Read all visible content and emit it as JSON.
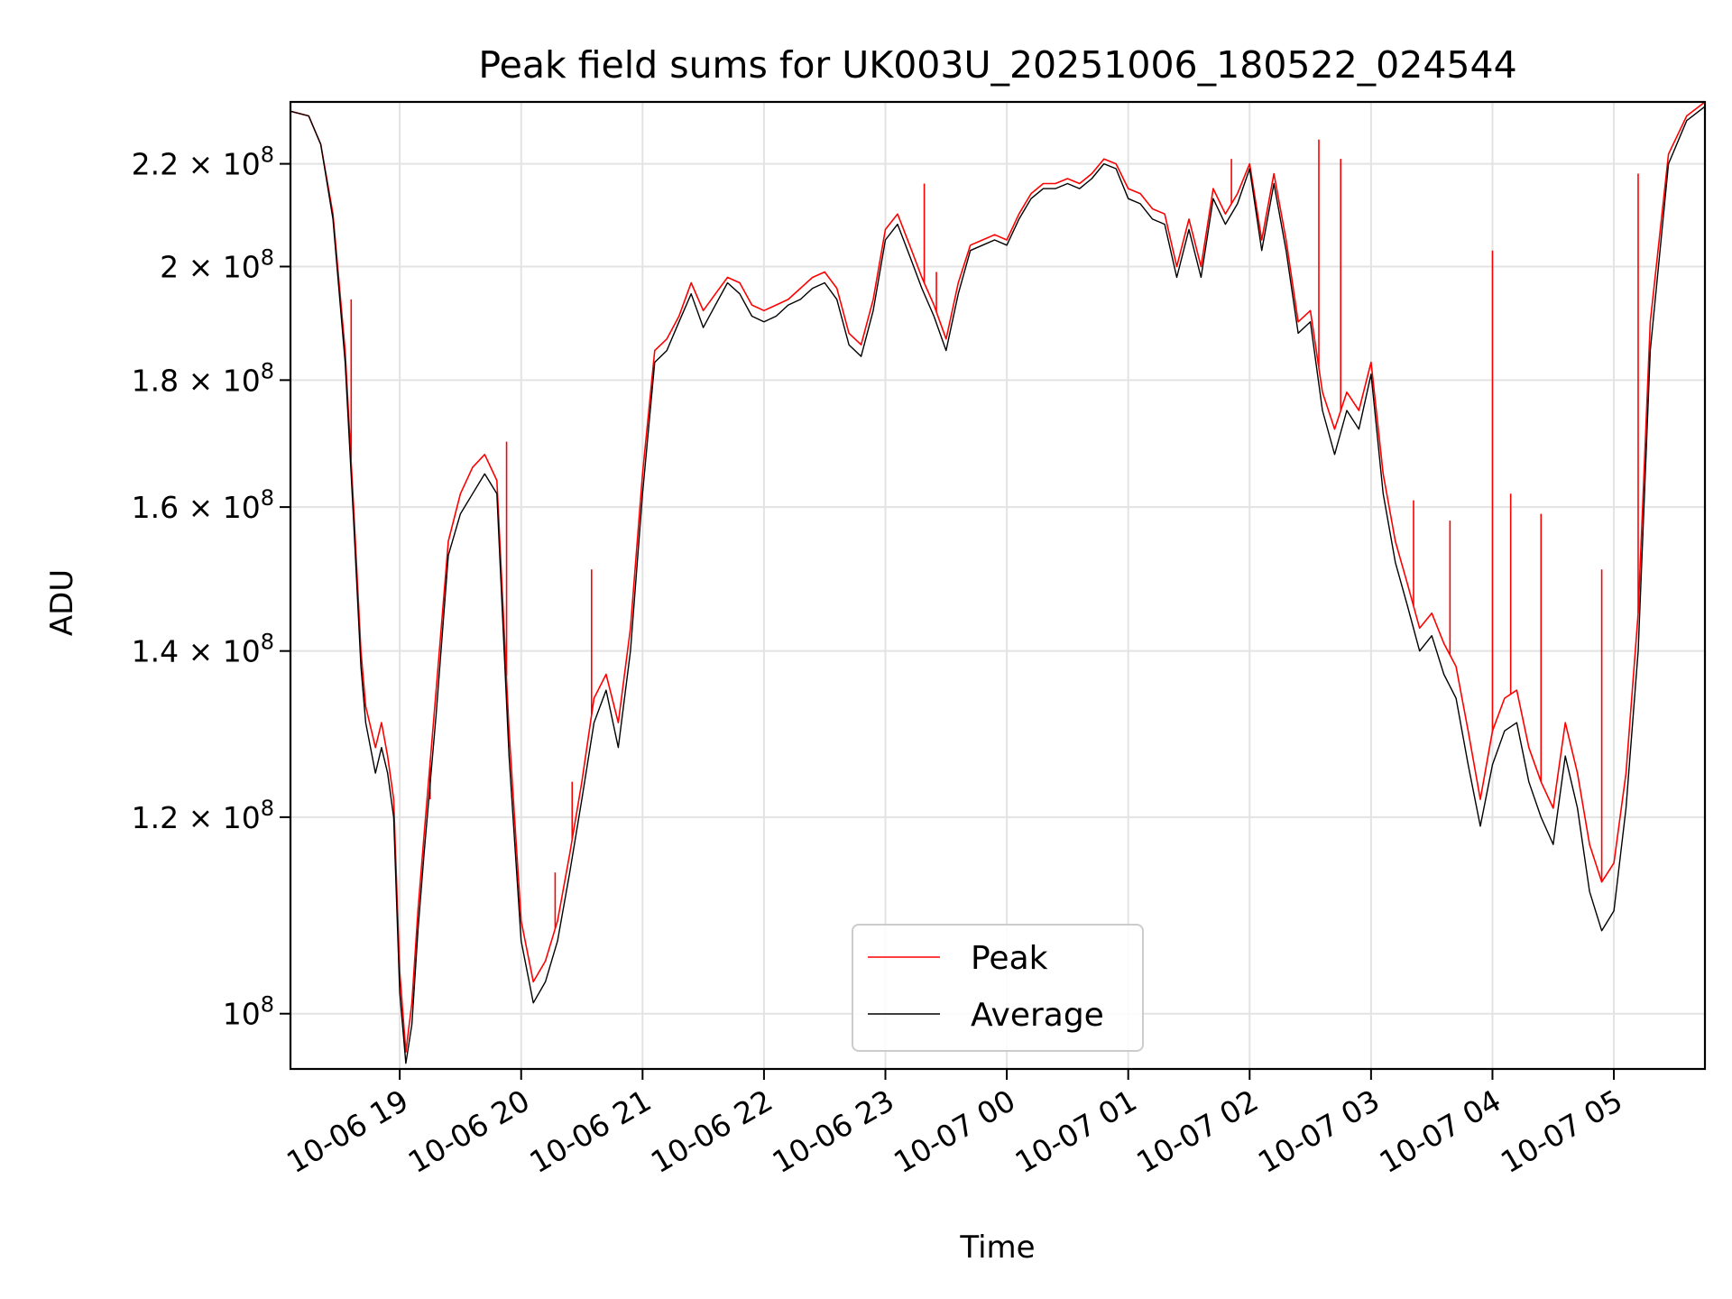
{
  "chart_data": {
    "type": "line",
    "title": "Peak field sums for UK003U_20251006_180522_024544",
    "xlabel": "Time",
    "ylabel": "ADU",
    "x_unit": "hours since 10-06 00:00",
    "xlim": [
      18.1,
      29.75
    ],
    "ylim": [
      95000000,
      233000000
    ],
    "yscale": "log",
    "grid": true,
    "legend_position": "lower center",
    "x_ticks": [
      {
        "value": 19,
        "label": "10-06 19"
      },
      {
        "value": 20,
        "label": "10-06 20"
      },
      {
        "value": 21,
        "label": "10-06 21"
      },
      {
        "value": 22,
        "label": "10-06 22"
      },
      {
        "value": 23,
        "label": "10-06 23"
      },
      {
        "value": 24,
        "label": "10-07 00"
      },
      {
        "value": 25,
        "label": "10-07 01"
      },
      {
        "value": 26,
        "label": "10-07 02"
      },
      {
        "value": 27,
        "label": "10-07 03"
      },
      {
        "value": 28,
        "label": "10-07 04"
      },
      {
        "value": 29,
        "label": "10-07 05"
      }
    ],
    "y_ticks": [
      {
        "value": 100000000,
        "mantissa": "",
        "exponent": "8"
      },
      {
        "value": 120000000,
        "mantissa": "1.2 × ",
        "exponent": "8"
      },
      {
        "value": 140000000,
        "mantissa": "1.4 × ",
        "exponent": "8"
      },
      {
        "value": 160000000,
        "mantissa": "1.6 × ",
        "exponent": "8"
      },
      {
        "value": 180000000,
        "mantissa": "1.8 × ",
        "exponent": "8"
      },
      {
        "value": 200000000,
        "mantissa": "2 × ",
        "exponent": "8"
      },
      {
        "value": 220000000,
        "mantissa": "2.2 × ",
        "exponent": "8"
      }
    ],
    "y_tick_base": "10",
    "series": [
      {
        "name": "Peak",
        "color": "#ff0000",
        "x": [
          18.1,
          18.25,
          18.35,
          18.45,
          18.55,
          18.62,
          18.68,
          18.72,
          18.8,
          18.85,
          18.9,
          18.95,
          19.0,
          19.05,
          19.1,
          19.15,
          19.2,
          19.3,
          19.4,
          19.5,
          19.6,
          19.7,
          19.8,
          19.9,
          20.0,
          20.1,
          20.2,
          20.3,
          20.4,
          20.5,
          20.6,
          20.7,
          20.8,
          20.9,
          21.0,
          21.1,
          21.2,
          21.3,
          21.4,
          21.5,
          21.6,
          21.7,
          21.8,
          21.9,
          22.0,
          22.1,
          22.2,
          22.3,
          22.4,
          22.5,
          22.6,
          22.7,
          22.8,
          22.9,
          23.0,
          23.1,
          23.2,
          23.3,
          23.4,
          23.5,
          23.6,
          23.7,
          23.8,
          23.9,
          24.0,
          24.1,
          24.2,
          24.3,
          24.4,
          24.5,
          24.6,
          24.7,
          24.8,
          24.9,
          25.0,
          25.1,
          25.2,
          25.3,
          25.4,
          25.5,
          25.6,
          25.7,
          25.8,
          25.9,
          26.0,
          26.1,
          26.2,
          26.3,
          26.4,
          26.5,
          26.6,
          26.7,
          26.8,
          26.9,
          27.0,
          27.1,
          27.2,
          27.3,
          27.4,
          27.5,
          27.6,
          27.7,
          27.8,
          27.9,
          28.0,
          28.1,
          28.2,
          28.3,
          28.4,
          28.5,
          28.6,
          28.7,
          28.8,
          28.9,
          29.0,
          29.1,
          29.2,
          29.3,
          29.45,
          29.6,
          29.75
        ],
        "y": [
          231000000,
          230000000,
          224000000,
          210000000,
          185000000,
          160000000,
          140000000,
          133000000,
          128000000,
          131000000,
          127000000,
          122000000,
          104000000,
          96500000,
          101000000,
          110000000,
          118000000,
          135000000,
          155000000,
          162000000,
          166000000,
          168000000,
          164000000,
          130000000,
          109000000,
          103000000,
          105000000,
          109000000,
          116000000,
          124000000,
          134000000,
          137000000,
          131000000,
          143000000,
          165000000,
          185000000,
          187000000,
          191000000,
          197000000,
          192000000,
          195000000,
          198000000,
          197000000,
          193000000,
          192000000,
          193000000,
          194000000,
          196000000,
          198000000,
          199000000,
          196000000,
          188000000,
          186000000,
          194000000,
          207000000,
          210000000,
          204000000,
          198000000,
          193000000,
          187000000,
          197000000,
          204000000,
          205000000,
          206000000,
          205000000,
          210000000,
          214000000,
          216000000,
          216000000,
          217000000,
          216000000,
          218000000,
          221000000,
          220000000,
          215000000,
          214000000,
          211000000,
          210000000,
          200000000,
          209000000,
          200000000,
          215000000,
          210000000,
          214000000,
          220000000,
          205000000,
          218000000,
          205000000,
          190000000,
          192000000,
          178000000,
          172000000,
          178000000,
          175000000,
          183000000,
          165000000,
          155000000,
          149000000,
          143000000,
          145000000,
          141000000,
          138000000,
          130000000,
          122000000,
          130000000,
          134000000,
          135000000,
          128000000,
          124000000,
          121000000,
          131000000,
          125000000,
          117000000,
          113000000,
          115000000,
          125000000,
          145000000,
          190000000,
          222000000,
          230000000,
          233000000
        ],
        "spikes": [
          {
            "x": 18.6,
            "y": 194000000
          },
          {
            "x": 19.25,
            "y": 122000000
          },
          {
            "x": 19.88,
            "y": 170000000
          },
          {
            "x": 20.28,
            "y": 114000000
          },
          {
            "x": 20.42,
            "y": 124000000
          },
          {
            "x": 20.58,
            "y": 151000000
          },
          {
            "x": 23.32,
            "y": 216000000
          },
          {
            "x": 23.42,
            "y": 199000000
          },
          {
            "x": 25.85,
            "y": 221000000
          },
          {
            "x": 26.57,
            "y": 225000000
          },
          {
            "x": 26.75,
            "y": 221000000
          },
          {
            "x": 27.35,
            "y": 161000000
          },
          {
            "x": 27.65,
            "y": 158000000
          },
          {
            "x": 28.0,
            "y": 203000000
          },
          {
            "x": 28.15,
            "y": 162000000
          },
          {
            "x": 28.4,
            "y": 159000000
          },
          {
            "x": 28.9,
            "y": 151000000
          },
          {
            "x": 29.2,
            "y": 218000000
          }
        ]
      },
      {
        "name": "Average",
        "color": "#000000",
        "x": [
          18.1,
          18.25,
          18.35,
          18.45,
          18.55,
          18.62,
          18.68,
          18.72,
          18.8,
          18.85,
          18.9,
          18.95,
          19.0,
          19.05,
          19.1,
          19.15,
          19.2,
          19.3,
          19.4,
          19.5,
          19.6,
          19.7,
          19.8,
          19.9,
          20.0,
          20.1,
          20.2,
          20.3,
          20.4,
          20.5,
          20.6,
          20.7,
          20.8,
          20.9,
          21.0,
          21.1,
          21.2,
          21.3,
          21.4,
          21.5,
          21.6,
          21.7,
          21.8,
          21.9,
          22.0,
          22.1,
          22.2,
          22.3,
          22.4,
          22.5,
          22.6,
          22.7,
          22.8,
          22.9,
          23.0,
          23.1,
          23.2,
          23.3,
          23.4,
          23.5,
          23.6,
          23.7,
          23.8,
          23.9,
          24.0,
          24.1,
          24.2,
          24.3,
          24.4,
          24.5,
          24.6,
          24.7,
          24.8,
          24.9,
          25.0,
          25.1,
          25.2,
          25.3,
          25.4,
          25.5,
          25.6,
          25.7,
          25.8,
          25.9,
          26.0,
          26.1,
          26.2,
          26.3,
          26.4,
          26.5,
          26.6,
          26.7,
          26.8,
          26.9,
          27.0,
          27.1,
          27.2,
          27.3,
          27.4,
          27.5,
          27.6,
          27.7,
          27.8,
          27.9,
          28.0,
          28.1,
          28.2,
          28.3,
          28.4,
          28.5,
          28.6,
          28.7,
          28.8,
          28.9,
          29.0,
          29.1,
          29.2,
          29.3,
          29.45,
          29.6,
          29.75
        ],
        "y": [
          231000000,
          230000000,
          224000000,
          209000000,
          183000000,
          158000000,
          138000000,
          131000000,
          125000000,
          128000000,
          125000000,
          120000000,
          102000000,
          95500000,
          99000000,
          108000000,
          116000000,
          132000000,
          153000000,
          159000000,
          162000000,
          165000000,
          162000000,
          127000000,
          107000000,
          101000000,
          103000000,
          107000000,
          114000000,
          122000000,
          131000000,
          135000000,
          128000000,
          140000000,
          162000000,
          183000000,
          185000000,
          190000000,
          195000000,
          189000000,
          193000000,
          197000000,
          195000000,
          191000000,
          190000000,
          191000000,
          193000000,
          194000000,
          196000000,
          197000000,
          194000000,
          186000000,
          184000000,
          192000000,
          205000000,
          208000000,
          202000000,
          196000000,
          191000000,
          185000000,
          195000000,
          203000000,
          204000000,
          205000000,
          204000000,
          209000000,
          213000000,
          215000000,
          215000000,
          216000000,
          215000000,
          217000000,
          220000000,
          219000000,
          213000000,
          212000000,
          209000000,
          208000000,
          198000000,
          207000000,
          198000000,
          213000000,
          208000000,
          212000000,
          219000000,
          203000000,
          216000000,
          203000000,
          188000000,
          190000000,
          175000000,
          168000000,
          175000000,
          172000000,
          181000000,
          162000000,
          152000000,
          146000000,
          140000000,
          142000000,
          137000000,
          134000000,
          126000000,
          119000000,
          126000000,
          130000000,
          131000000,
          124000000,
          120000000,
          117000000,
          127000000,
          121000000,
          112000000,
          108000000,
          110000000,
          121000000,
          140000000,
          185000000,
          220000000,
          229000000,
          232000000
        ]
      }
    ]
  }
}
